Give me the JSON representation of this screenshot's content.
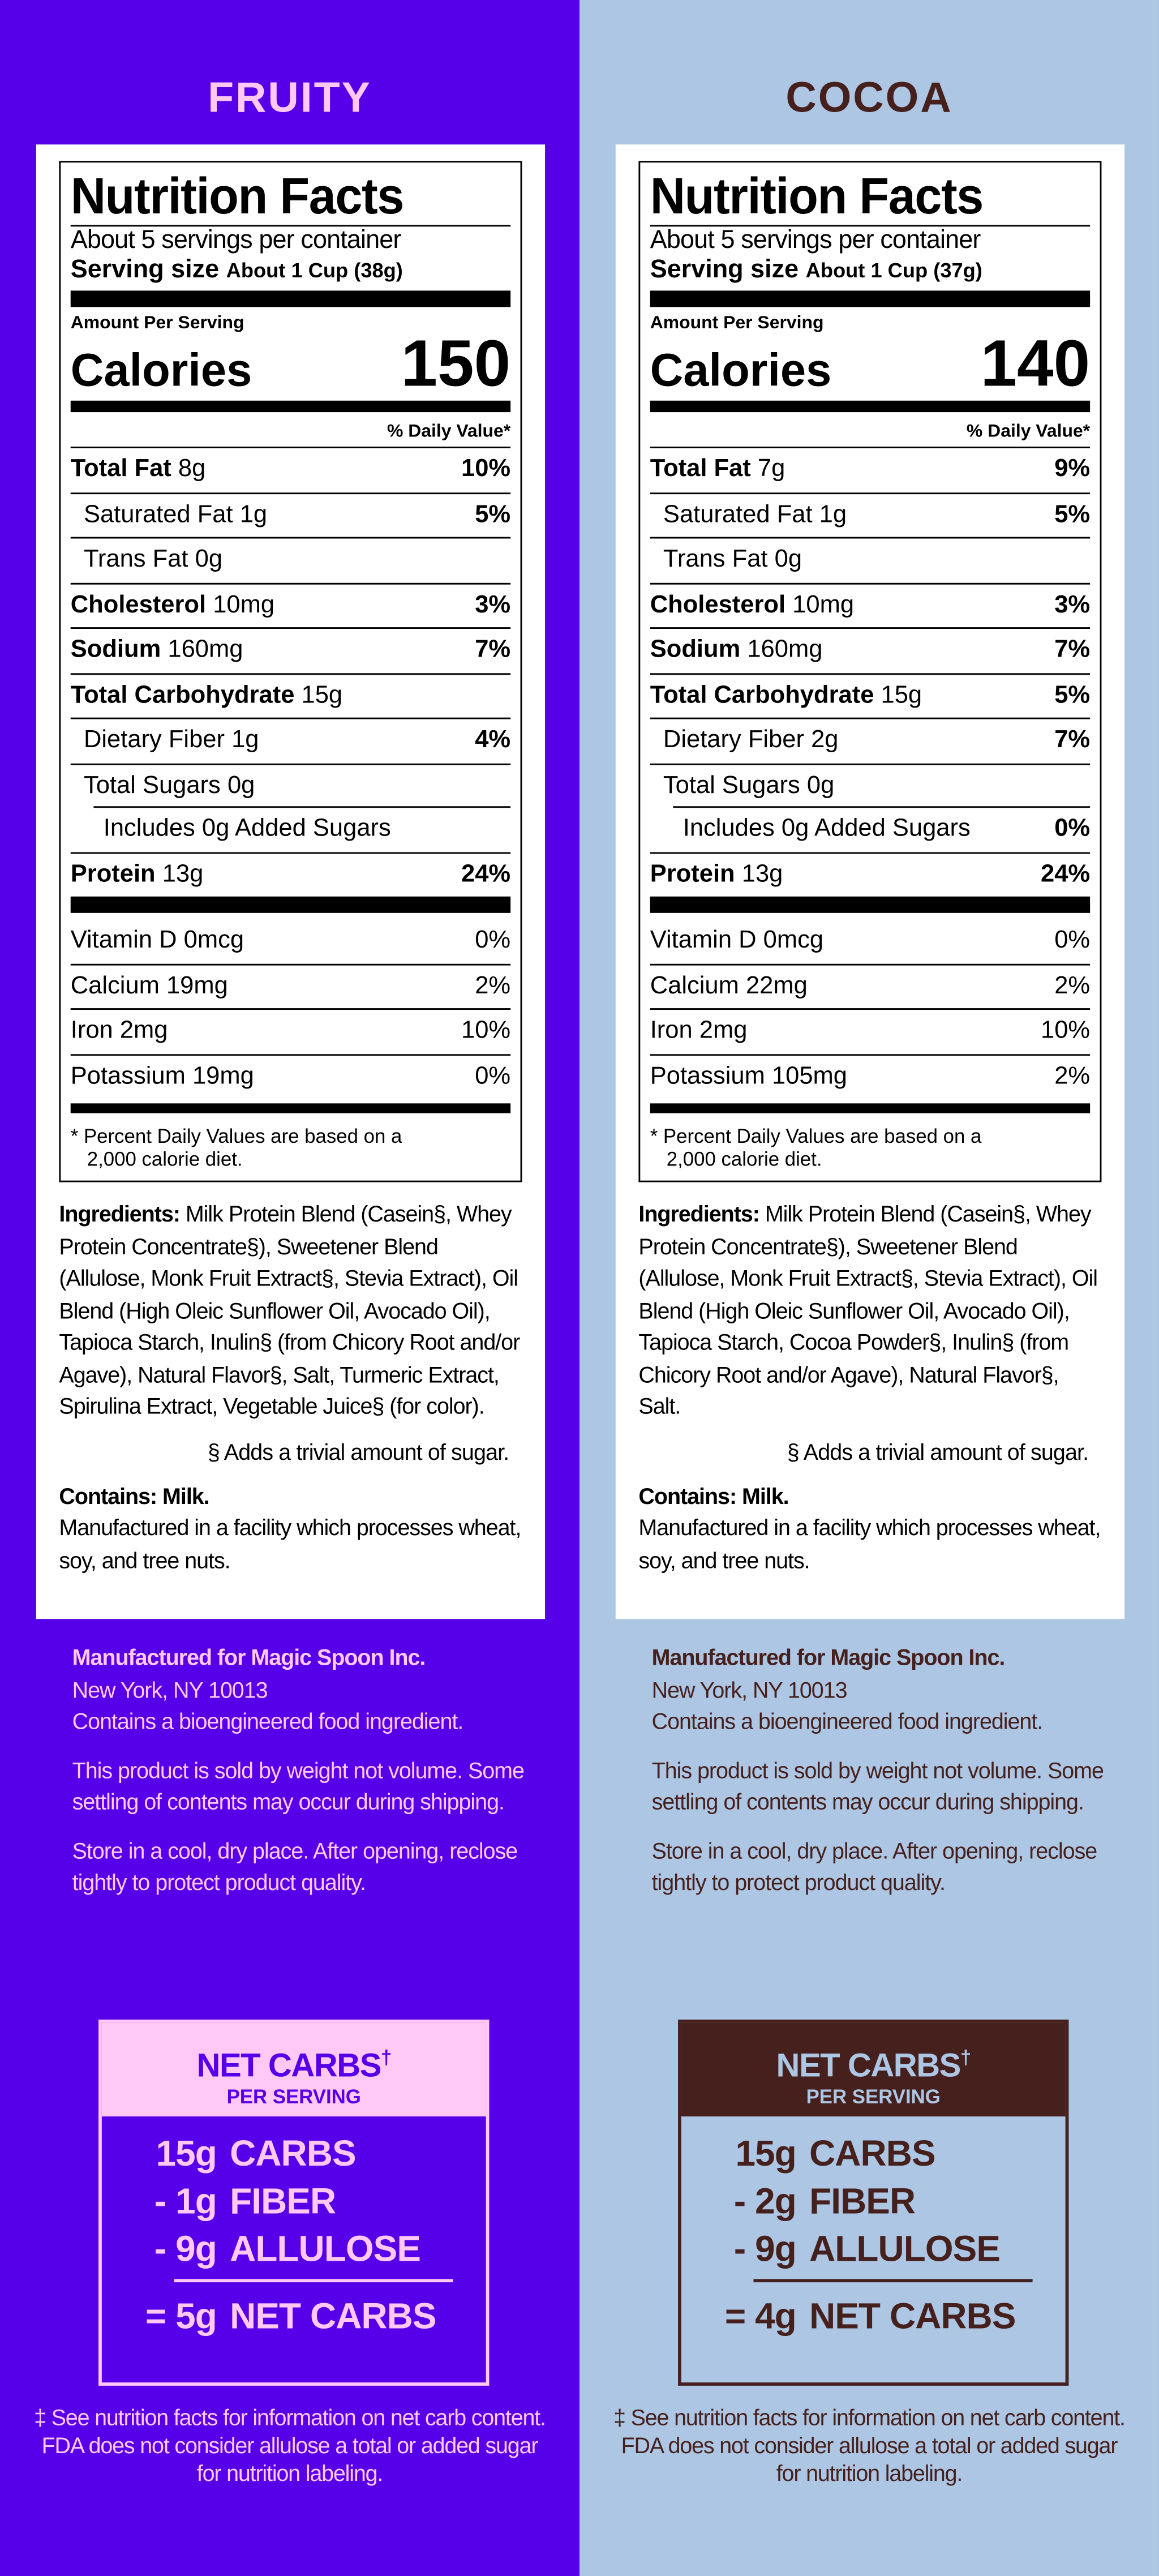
{
  "colors": {
    "fruity_bg": "#5500e8",
    "fruity_accent": "#ffc8f5",
    "cocoa_bg": "#adc6e4",
    "cocoa_accent": "#45201c"
  },
  "panels": [
    {
      "title": "FRUITY",
      "bg": "#5500e8",
      "accent": "#ffc8f5",
      "label": {
        "heading": "Nutrition Facts",
        "servings": "About 5 servings per container",
        "serving_size_label": "Serving size",
        "serving_size_value": "About 1 Cup (38g)",
        "amount_per_serving": "Amount Per Serving",
        "calories_label": "Calories",
        "calories": "150",
        "dv_header": "% Daily Value*",
        "nutrients": [
          {
            "name": "Total Fat",
            "amount": "8g",
            "dv": "10%",
            "bold": true,
            "indent": 0
          },
          {
            "name": "Saturated Fat",
            "amount": "1g",
            "dv": "5%",
            "bold": false,
            "indent": 1
          },
          {
            "name": "Trans Fat",
            "amount": "0g",
            "dv": "",
            "bold": false,
            "indent": 1
          },
          {
            "name": "Cholesterol",
            "amount": "10mg",
            "dv": "3%",
            "bold": true,
            "indent": 0
          },
          {
            "name": "Sodium",
            "amount": "160mg",
            "dv": "7%",
            "bold": true,
            "indent": 0
          },
          {
            "name": "Total Carbohydrate",
            "amount": "15g",
            "dv": "",
            "bold": true,
            "indent": 0
          },
          {
            "name": "Dietary Fiber",
            "amount": "1g",
            "dv": "4%",
            "bold": false,
            "indent": 1
          },
          {
            "name": "Total Sugars",
            "amount": "0g",
            "dv": "",
            "bold": false,
            "indent": 1
          },
          {
            "name": "Includes 0g Added Sugars",
            "amount": "",
            "dv": "",
            "bold": false,
            "indent": 2
          },
          {
            "name": "Protein",
            "amount": "13g",
            "dv": "24%",
            "bold": true,
            "indent": 0
          }
        ],
        "vitamins": [
          {
            "name": "Vitamin D 0mcg",
            "dv": "0%"
          },
          {
            "name": "Calcium 19mg",
            "dv": "2%"
          },
          {
            "name": "Iron 2mg",
            "dv": "10%"
          },
          {
            "name": "Potassium 19mg",
            "dv": "0%"
          }
        ],
        "footnote_1": "* Percent Daily Values are based on a",
        "footnote_2": "2,000 calorie diet."
      },
      "ingredients_label": "Ingredients:",
      "ingredients": " Milk Protein Blend (Casein§, Whey Protein Concentrate§), Sweetener Blend (Allulose, Monk Fruit Extract§, Stevia Extract), Oil Blend (High Oleic Sunflower Oil, Avocado Oil), Tapioca Starch, Inulin§ (from Chicory Root and/or Agave), Natural Flavor§, Salt, Turmeric Extract, Spirulina Extract, Vegetable Juice§ (for color).",
      "sugar_note": "§ Adds a trivial amount of sugar.",
      "contains": "Contains: Milk.",
      "facility": "Manufactured in a facility which processes wheat, soy, and tree nuts.",
      "manufacturer": "Manufactured for Magic Spoon Inc.",
      "address": "New York, NY 10013",
      "bioengineered": "Contains a bioengineered food ingredient.",
      "weight_note": "This product is sold by weight not volume. Some settling of contents may occur during shipping.",
      "storage": "Store in a cool, dry place. After opening, reclose tightly to protect product quality.",
      "net_carbs": {
        "title": "NET CARBS",
        "title_mark": "†",
        "subtitle": "PER SERVING",
        "lines": [
          {
            "amount": "15g",
            "label": "CARBS"
          },
          {
            "amount": "- 1g",
            "label": "FIBER"
          },
          {
            "amount": "- 9g",
            "label": "ALLULOSE"
          }
        ],
        "total_amount": "= 5g",
        "total_label": "NET CARBS"
      },
      "net_carbs_note": "‡ See nutrition facts for information on net carb content. FDA does not consider allulose a total or added sugar for nutrition labeling."
    },
    {
      "title": "COCOA",
      "bg": "#adc6e4",
      "accent": "#45201c",
      "label": {
        "heading": "Nutrition Facts",
        "servings": "About 5 servings per container",
        "serving_size_label": "Serving size",
        "serving_size_value": "About 1 Cup (37g)",
        "amount_per_serving": "Amount Per Serving",
        "calories_label": "Calories",
        "calories": "140",
        "dv_header": "% Daily Value*",
        "nutrients": [
          {
            "name": "Total Fat",
            "amount": "7g",
            "dv": "9%",
            "bold": true,
            "indent": 0
          },
          {
            "name": "Saturated Fat",
            "amount": "1g",
            "dv": "5%",
            "bold": false,
            "indent": 1
          },
          {
            "name": "Trans Fat",
            "amount": "0g",
            "dv": "",
            "bold": false,
            "indent": 1
          },
          {
            "name": "Cholesterol",
            "amount": "10mg",
            "dv": "3%",
            "bold": true,
            "indent": 0
          },
          {
            "name": "Sodium",
            "amount": "160mg",
            "dv": "7%",
            "bold": true,
            "indent": 0
          },
          {
            "name": "Total Carbohydrate",
            "amount": "15g",
            "dv": "5%",
            "bold": true,
            "indent": 0
          },
          {
            "name": "Dietary Fiber",
            "amount": "2g",
            "dv": "7%",
            "bold": false,
            "indent": 1
          },
          {
            "name": "Total Sugars",
            "amount": "0g",
            "dv": "",
            "bold": false,
            "indent": 1
          },
          {
            "name": "Includes 0g Added Sugars",
            "amount": "",
            "dv": "0%",
            "bold": false,
            "indent": 2
          },
          {
            "name": "Protein",
            "amount": "13g",
            "dv": "24%",
            "bold": true,
            "indent": 0
          }
        ],
        "vitamins": [
          {
            "name": "Vitamin D 0mcg",
            "dv": "0%"
          },
          {
            "name": "Calcium 22mg",
            "dv": "2%"
          },
          {
            "name": "Iron 2mg",
            "dv": "10%"
          },
          {
            "name": "Potassium 105mg",
            "dv": "2%"
          }
        ],
        "footnote_1": "* Percent Daily Values are based on a",
        "footnote_2": "2,000 calorie diet."
      },
      "ingredients_label": "Ingredients:",
      "ingredients": " Milk Protein Blend (Casein§, Whey Protein Concentrate§), Sweetener Blend (Allulose, Monk Fruit Extract§, Stevia Extract), Oil Blend (High Oleic Sunflower Oil, Avocado Oil), Tapioca Starch, Cocoa Powder§, Inulin§ (from Chicory Root and/or Agave), Natural Flavor§, Salt.",
      "sugar_note": "§ Adds a trivial amount of sugar.",
      "contains": "Contains: Milk.",
      "facility": "Manufactured in a facility which processes wheat, soy, and tree nuts.",
      "manufacturer": "Manufactured for Magic Spoon Inc.",
      "address": "New York, NY 10013",
      "bioengineered": "Contains a bioengineered food ingredient.",
      "weight_note": "This product is sold by weight not volume. Some settling of contents may occur during shipping.",
      "storage": "Store in a cool, dry place. After opening, reclose tightly to protect product quality.",
      "net_carbs": {
        "title": "NET CARBS",
        "title_mark": "†",
        "subtitle": "PER SERVING",
        "lines": [
          {
            "amount": "15g",
            "label": "CARBS"
          },
          {
            "amount": "- 2g",
            "label": "FIBER"
          },
          {
            "amount": "- 9g",
            "label": "ALLULOSE"
          }
        ],
        "total_amount": "= 4g",
        "total_label": "NET CARBS"
      },
      "net_carbs_note": "‡ See nutrition facts for information on net carb content. FDA does not consider allulose a total or added sugar for nutrition labeling."
    }
  ]
}
